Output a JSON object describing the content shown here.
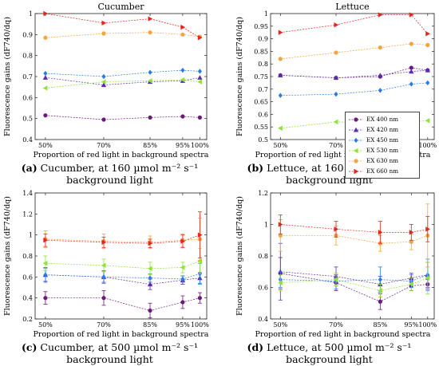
{
  "panel_captions": [
    {
      "letter": "(a)",
      "line1": "Cucumber, at 160 µmol m⁻² s⁻¹",
      "line2": "background light"
    },
    {
      "letter": "(b)",
      "line1": "Lettuce, at 160 µmol m⁻² s⁻¹",
      "line2": "background light"
    },
    {
      "letter": "(c)",
      "line1": "Cucumber, at 500 µmol m⁻² s⁻¹",
      "line2": "background light"
    },
    {
      "letter": "(d)",
      "line1": "Lettuce, at 500 µmol m⁻² s⁻¹",
      "line2": "background light"
    }
  ],
  "legend": {
    "entries": [
      {
        "label": "EX 400 nm",
        "color": "#6b1a7a",
        "marker": "circle"
      },
      {
        "label": "EX 420 nm",
        "color": "#5a2db0",
        "marker": "triangle-up"
      },
      {
        "label": "EX 450 nm",
        "color": "#2c7be0",
        "marker": "diamond"
      },
      {
        "label": "EX 530 nm",
        "color": "#8de33a",
        "marker": "triangle-left"
      },
      {
        "label": "EX 630 nm",
        "color": "#f5a442",
        "marker": "circle"
      },
      {
        "label": "EX 660 nm",
        "color": "#e8231c",
        "marker": "triangle-right"
      }
    ]
  },
  "chart_data": [
    {
      "type": "scatter",
      "title": "Cucumber",
      "xlabel": "Proportion of red light in background spectra",
      "ylabel": "Fluorescence gains (dF740/dq)",
      "x_ticks": [
        "50%",
        "70%",
        "85%",
        "95%",
        "100%"
      ],
      "x": [
        50,
        70,
        85,
        95,
        100
      ],
      "ylim": [
        0.4,
        1.0
      ],
      "y_ticks": [
        "0.4",
        "0.5",
        "0.6",
        "0.7",
        "0.8",
        "0.9",
        "1"
      ],
      "series": [
        {
          "name": "EX 400 nm",
          "values": [
            0.515,
            0.495,
            0.505,
            0.51,
            0.505
          ]
        },
        {
          "name": "EX 420 nm",
          "values": [
            0.695,
            0.66,
            0.675,
            0.68,
            0.695
          ]
        },
        {
          "name": "EX 450 nm",
          "values": [
            0.715,
            0.7,
            0.72,
            0.73,
            0.725
          ]
        },
        {
          "name": "EX 530 nm",
          "values": [
            0.645,
            0.675,
            0.68,
            0.685,
            0.675
          ]
        },
        {
          "name": "EX 630 nm",
          "values": [
            0.885,
            0.905,
            0.91,
            0.9,
            0.89
          ]
        },
        {
          "name": "EX 660 nm",
          "values": [
            1.0,
            0.955,
            0.975,
            0.935,
            0.885
          ]
        }
      ]
    },
    {
      "type": "scatter",
      "title": "Lettuce",
      "xlabel": "Proportion of red light in background spectra",
      "ylabel": "Fluorescence gains (dF740/dq)",
      "x_ticks": [
        "50%",
        "70%",
        "85%",
        "95%",
        "100%"
      ],
      "x": [
        50,
        70,
        85,
        95,
        100
      ],
      "ylim": [
        0.5,
        1.0
      ],
      "y_ticks": [
        "0.5",
        "0.55",
        "0.6",
        "0.65",
        "0.7",
        "0.75",
        "0.8",
        "0.85",
        "0.9",
        "0.95",
        "1"
      ],
      "series": [
        {
          "name": "EX 400 nm",
          "values": [
            0.755,
            0.745,
            0.75,
            0.785,
            0.775
          ]
        },
        {
          "name": "EX 420 nm",
          "values": [
            0.755,
            0.745,
            0.755,
            0.77,
            0.775
          ]
        },
        {
          "name": "EX 450 nm",
          "values": [
            0.675,
            0.68,
            0.695,
            0.72,
            0.725
          ]
        },
        {
          "name": "EX 530 nm",
          "values": [
            0.545,
            0.57,
            0.565,
            0.57,
            0.575
          ]
        },
        {
          "name": "EX 630 nm",
          "values": [
            0.82,
            0.845,
            0.865,
            0.88,
            0.875
          ]
        },
        {
          "name": "EX 660 nm",
          "values": [
            0.925,
            0.955,
            0.995,
            0.995,
            0.92
          ]
        }
      ]
    },
    {
      "type": "scatter",
      "title": "",
      "xlabel": "Proportion of red light in background spectra",
      "ylabel": "Fluorescence gains (dF740/dq)",
      "x_ticks": [
        "50%",
        "70%",
        "85%",
        "95%",
        "100%"
      ],
      "x": [
        50,
        70,
        85,
        95,
        100
      ],
      "ylim": [
        0.2,
        1.4
      ],
      "y_ticks": [
        "0.2",
        "0.4",
        "0.6",
        "0.8",
        "1",
        "1.2",
        "1.4"
      ],
      "series": [
        {
          "name": "EX 400 nm",
          "values": [
            0.4,
            0.4,
            0.28,
            0.36,
            0.4
          ],
          "errors": [
            0.06,
            0.07,
            0.07,
            0.06,
            0.05
          ]
        },
        {
          "name": "EX 420 nm",
          "values": [
            0.62,
            0.6,
            0.53,
            0.57,
            0.59
          ],
          "errors": [
            0.07,
            0.06,
            0.05,
            0.04,
            0.05
          ]
        },
        {
          "name": "EX 450 nm",
          "values": [
            0.62,
            0.6,
            0.59,
            0.58,
            0.63
          ],
          "errors": [
            0.06,
            0.05,
            0.04,
            0.03,
            0.1
          ]
        },
        {
          "name": "EX 530 nm",
          "values": [
            0.73,
            0.71,
            0.68,
            0.69,
            0.75
          ],
          "errors": [
            0.07,
            0.06,
            0.06,
            0.05,
            0.12
          ]
        },
        {
          "name": "EX 630 nm",
          "values": [
            0.96,
            0.94,
            0.93,
            0.95,
            0.96
          ],
          "errors": [
            0.08,
            0.07,
            0.06,
            0.06,
            0.2
          ]
        },
        {
          "name": "EX 660 nm",
          "values": [
            0.95,
            0.93,
            0.92,
            0.94,
            1.0
          ],
          "errors": [
            0.06,
            0.05,
            0.04,
            0.06,
            0.22
          ]
        }
      ]
    },
    {
      "type": "scatter",
      "title": "",
      "xlabel": "Proportion of red light in background spectra",
      "ylabel": "Fluorescence gains (dF740/dq)",
      "x_ticks": [
        "50%",
        "70%",
        "85%",
        "95%",
        "100%"
      ],
      "x": [
        50,
        70,
        85,
        95,
        100
      ],
      "ylim": [
        0.4,
        1.2
      ],
      "y_ticks": [
        "0.4",
        "0.6",
        "0.8",
        "1",
        "1.2"
      ],
      "series": [
        {
          "name": "EX 400 nm",
          "values": [
            0.69,
            0.63,
            0.51,
            0.61,
            0.62
          ],
          "errors": [
            0.1,
            0.05,
            0.05,
            0.03,
            0.03
          ]
        },
        {
          "name": "EX 420 nm",
          "values": [
            0.7,
            0.67,
            0.62,
            0.66,
            0.68
          ],
          "errors": [
            0.18,
            0.06,
            0.05,
            0.03,
            0.08
          ]
        },
        {
          "name": "EX 450 nm",
          "values": [
            0.65,
            0.64,
            0.65,
            0.64,
            0.68
          ],
          "errors": [
            0.05,
            0.05,
            0.08,
            0.04,
            0.1
          ]
        },
        {
          "name": "EX 530 nm",
          "values": [
            0.63,
            0.65,
            0.58,
            0.62,
            0.66
          ],
          "errors": [
            0.05,
            0.04,
            0.04,
            0.04,
            0.1
          ]
        },
        {
          "name": "EX 630 nm",
          "values": [
            0.93,
            0.93,
            0.88,
            0.89,
            0.93
          ],
          "errors": [
            0.1,
            0.06,
            0.05,
            0.05,
            0.2
          ]
        },
        {
          "name": "EX 660 nm",
          "values": [
            1.0,
            0.97,
            0.95,
            0.95,
            0.97
          ],
          "errors": [
            0.06,
            0.05,
            0.07,
            0.05,
            0.08
          ]
        }
      ]
    }
  ]
}
